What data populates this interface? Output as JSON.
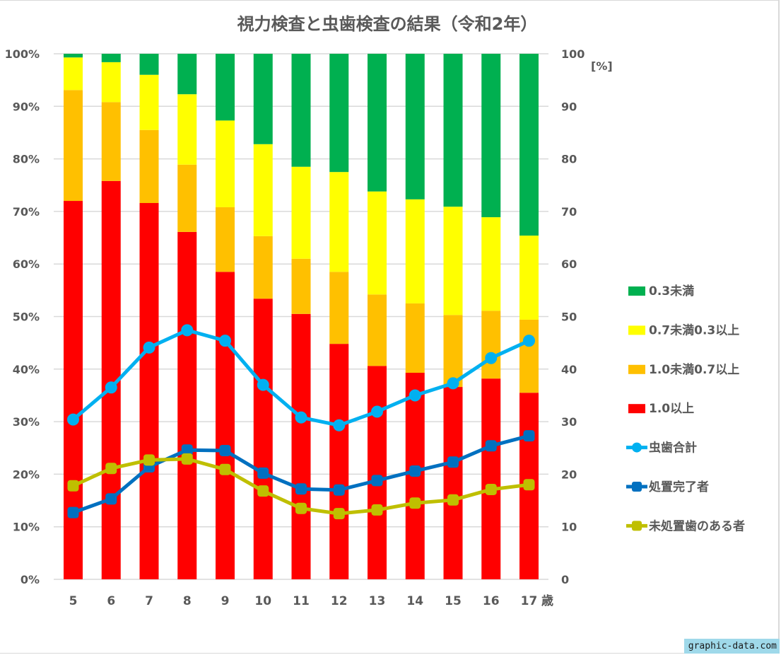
{
  "chart_data": {
    "type": "bar",
    "stacked": true,
    "title": "視力検査と虫歯検査の結果（令和2年）",
    "categories": [
      "5",
      "6",
      "7",
      "8",
      "9",
      "10",
      "11",
      "12",
      "13",
      "14",
      "15",
      "16",
      "17"
    ],
    "x_unit_label": "歳",
    "left_axis": {
      "ylim": [
        0,
        100
      ],
      "ticks": [
        "0%",
        "10%",
        "20%",
        "30%",
        "40%",
        "50%",
        "60%",
        "70%",
        "80%",
        "90%",
        "100%"
      ]
    },
    "right_axis": {
      "ylim": [
        0,
        100
      ],
      "ticks": [
        "0",
        "10",
        "20",
        "30",
        "40",
        "50",
        "60",
        "70",
        "80",
        "90",
        "100"
      ],
      "unit_label": "[%]"
    },
    "grid": true,
    "legend_position": "right",
    "bar_series": [
      {
        "name": "1.0以上",
        "color": "#ff0000",
        "values": [
          72.0,
          75.8,
          71.6,
          66.1,
          58.5,
          53.4,
          50.5,
          44.8,
          40.6,
          39.3,
          36.6,
          38.2,
          35.5
        ]
      },
      {
        "name": "1.0未満0.7以上",
        "color": "#ffc000",
        "values": [
          21.1,
          15.0,
          13.9,
          12.8,
          12.3,
          11.9,
          10.5,
          13.7,
          13.6,
          13.2,
          13.7,
          12.9,
          13.9
        ]
      },
      {
        "name": "0.7未満0.3以上",
        "color": "#ffff00",
        "values": [
          6.2,
          7.6,
          10.5,
          13.4,
          16.5,
          17.5,
          17.5,
          19.0,
          19.6,
          19.8,
          20.6,
          17.8,
          16.0
        ]
      },
      {
        "name": "0.3未満",
        "color": "#00b050",
        "values": [
          0.7,
          1.6,
          4.0,
          7.7,
          12.7,
          17.2,
          21.5,
          22.5,
          26.2,
          27.7,
          29.1,
          31.1,
          34.6
        ]
      }
    ],
    "line_series": [
      {
        "name": "虫歯合計",
        "color": "#00b0f0",
        "marker": "circle",
        "values": [
          30.4,
          36.5,
          44.1,
          47.4,
          45.4,
          37.0,
          30.8,
          29.3,
          31.9,
          35.0,
          37.3,
          42.1,
          45.4
        ]
      },
      {
        "name": "処置完了者",
        "color": "#0070c0",
        "marker": "square",
        "values": [
          12.7,
          15.3,
          21.4,
          24.6,
          24.5,
          20.2,
          17.2,
          17.0,
          18.8,
          20.6,
          22.3,
          25.4,
          27.3
        ]
      },
      {
        "name": "未処置歯のある者",
        "color": "#bfbf00",
        "marker": "square",
        "values": [
          17.8,
          21.1,
          22.7,
          22.9,
          20.9,
          16.8,
          13.5,
          12.5,
          13.2,
          14.5,
          15.1,
          17.1,
          18.0
        ]
      }
    ],
    "legend_order": [
      "0.3未満",
      "0.7未満0.3以上",
      "1.0未満0.7以上",
      "1.0以上",
      "虫歯合計",
      "処置完了者",
      "未処置歯のある者"
    ]
  },
  "watermark": "graphic-data.com"
}
